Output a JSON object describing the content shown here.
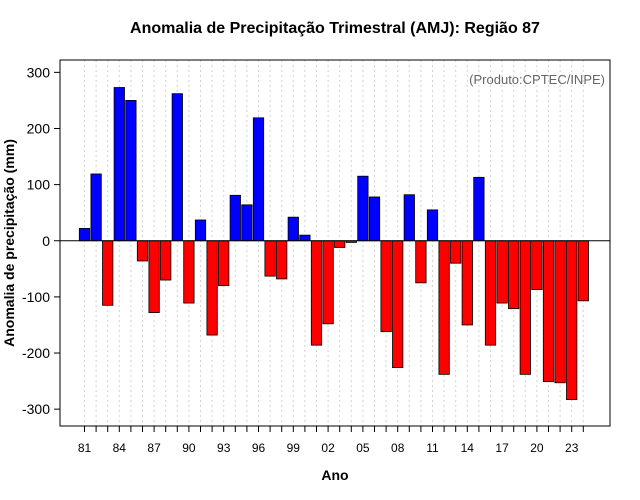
{
  "chart_data": {
    "type": "bar",
    "title": "Anomalia de Precipitação Trimestral (AMJ): Região 87",
    "xlabel": "Ano",
    "ylabel": "Anomalia de precipitação (mm)",
    "annotation": "(Produto:CPTEC/INPE)",
    "ylim": [
      -330,
      322
    ],
    "y_ticks": [
      -300,
      -200,
      -100,
      0,
      100,
      200,
      300
    ],
    "x_tick_labels": [
      "81",
      "84",
      "87",
      "90",
      "93",
      "96",
      "99",
      "02",
      "05",
      "08",
      "11",
      "14",
      "17",
      "20",
      "23"
    ],
    "years": [
      1981,
      1982,
      1983,
      1984,
      1985,
      1986,
      1987,
      1988,
      1989,
      1990,
      1991,
      1992,
      1993,
      1994,
      1995,
      1996,
      1997,
      1998,
      1999,
      2000,
      2001,
      2002,
      2003,
      2004,
      2005,
      2006,
      2007,
      2008,
      2009,
      2010,
      2011,
      2012,
      2013,
      2014,
      2015,
      2016,
      2017,
      2018,
      2019,
      2020,
      2021,
      2022,
      2023,
      2024
    ],
    "values": [
      22,
      119,
      -115,
      273,
      250,
      -36,
      -128,
      -70,
      262,
      -111,
      37,
      -168,
      -80,
      81,
      64,
      219,
      -63,
      -68,
      42,
      10,
      -186,
      -148,
      -12,
      -3,
      115,
      78,
      -162,
      -226,
      82,
      -75,
      55,
      -238,
      -40,
      -150,
      113,
      -186,
      -111,
      -121,
      -238,
      -87,
      -251,
      -253,
      -283,
      -107
    ],
    "colors": {
      "positive": "#0000ff",
      "negative": "#ff0000",
      "grid": "#d3d3d3",
      "annotation": "#666666"
    },
    "grid": true
  }
}
